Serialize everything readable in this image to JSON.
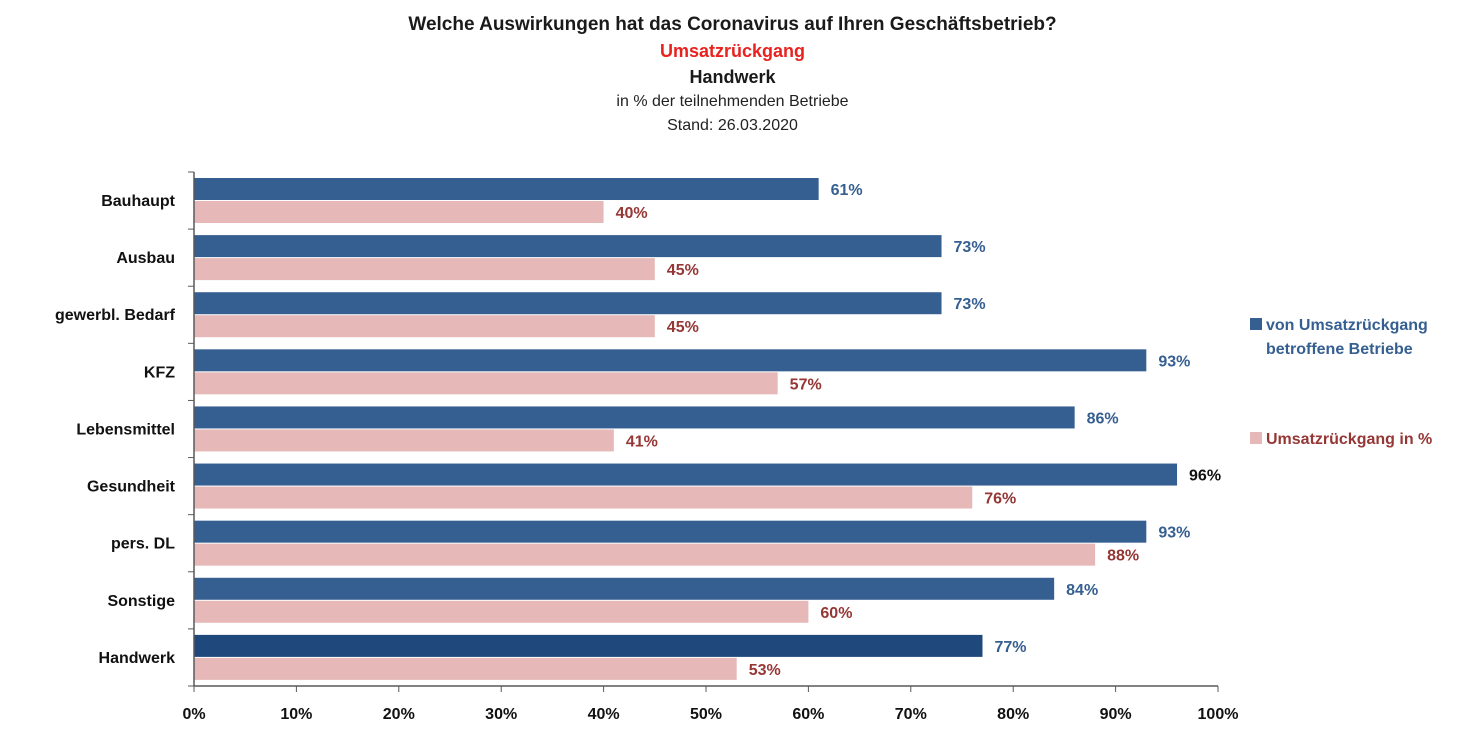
{
  "colors": {
    "series1": "#365f91",
    "series1_highlight": "#1f497d",
    "series2": "#e6b9b8",
    "series1_label": "#365f91",
    "series2_label": "#953735",
    "subtitle": "#e8231f",
    "axis": "#595959"
  },
  "chart_data": {
    "type": "bar",
    "orientation": "horizontal",
    "title": "Welche Auswirkungen hat das Coronavirus auf Ihren Geschäftsbetrieb?",
    "subtitle": "Umsatzrückgang",
    "subtitle2": "Handwerk",
    "note": "in % der teilnehmenden Betriebe",
    "stand": "Stand:  26.03.2020",
    "categories": [
      "Bauhaupt",
      "Ausbau",
      "gewerbl. Bedarf",
      "KFZ",
      "Lebensmittel",
      "Gesundheit",
      "pers. DL",
      "Sonstige",
      "Handwerk"
    ],
    "series": [
      {
        "name": "von Umsatzrückgang betroffene Betriebe",
        "values": [
          61,
          73,
          73,
          93,
          86,
          96,
          93,
          84,
          77
        ]
      },
      {
        "name": "Umsatzrückgang in %",
        "values": [
          40,
          45,
          45,
          57,
          41,
          76,
          88,
          60,
          53
        ]
      }
    ],
    "value_labels": [
      [
        "61%",
        "73%",
        "73%",
        "93%",
        "86%",
        "96%",
        "93%",
        "84%",
        "77%"
      ],
      [
        "40%",
        "45%",
        "45%",
        "57%",
        "41%",
        "76%",
        "88%",
        "60%",
        "53%"
      ]
    ],
    "xlim": [
      0,
      100
    ],
    "xticks": [
      0,
      10,
      20,
      30,
      40,
      50,
      60,
      70,
      80,
      90,
      100
    ],
    "xtick_labels": [
      "0%",
      "10%",
      "20%",
      "30%",
      "40%",
      "50%",
      "60%",
      "70%",
      "80%",
      "90%",
      "100%"
    ],
    "grid": false,
    "legend_position": "right",
    "legend": {
      "series1_line1": "von Umsatzrückgang",
      "series1_line2": "betroffene Betriebe",
      "series2": "Umsatzrückgang in %"
    }
  }
}
